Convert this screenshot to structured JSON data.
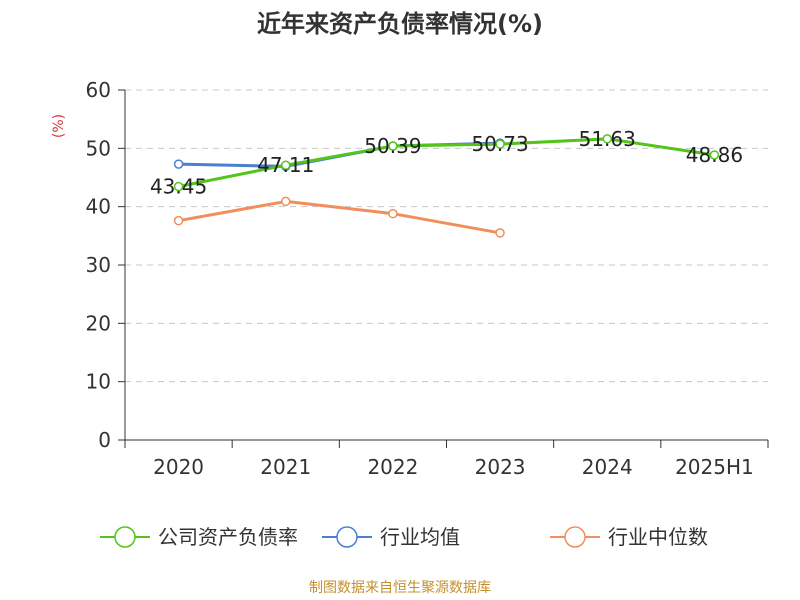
{
  "chart_data": {
    "type": "line",
    "title": "近年来资产负债率情况(%)",
    "ylabel": "(%)",
    "source": "制图数据来自恒生聚源数据库",
    "categories": [
      "2020",
      "2021",
      "2022",
      "2023",
      "2024",
      "2025H1"
    ],
    "ylim": [
      0,
      60
    ],
    "yticks": [
      "0",
      "10",
      "20",
      "30",
      "40",
      "50",
      "60"
    ],
    "grid": true,
    "legend_position": "bottom",
    "series": [
      {
        "name": "公司资产负债率",
        "color": "#52c41a",
        "values": [
          43.45,
          47.11,
          50.39,
          50.73,
          51.63,
          48.86
        ],
        "labels": [
          "43.45",
          "47.11",
          "50.39",
          "50.73",
          "51.63",
          "48.86"
        ]
      },
      {
        "name": "行业均值",
        "color": "#4a7fd4",
        "values": [
          47.3,
          46.9,
          50.4,
          50.9,
          null,
          null
        ]
      },
      {
        "name": "行业中位数",
        "color": "#f28e5b",
        "values": [
          37.6,
          40.9,
          38.8,
          35.5,
          null,
          null
        ]
      }
    ]
  }
}
